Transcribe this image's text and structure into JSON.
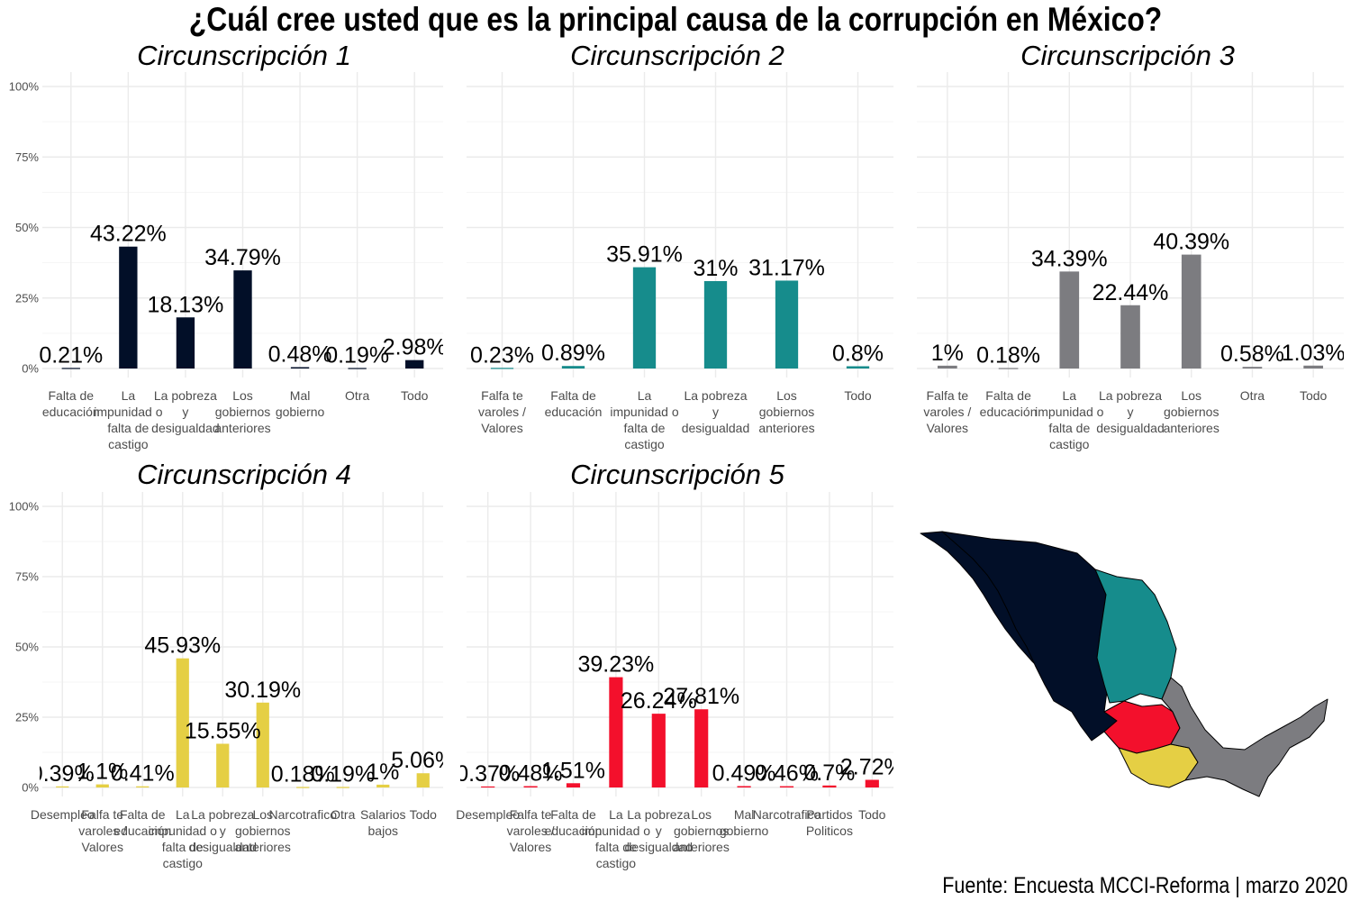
{
  "title": "¿Cuál cree usted que es la principal causa de la corrupción en México?",
  "caption": "Fuente: Encuesta MCCI-Reforma | marzo 2020",
  "map": {
    "regions": [
      "Circunscripción 1",
      "Circunscripción 2",
      "Circunscripción 3",
      "Circunscripción 4",
      "Circunscripción 5"
    ]
  },
  "chart_data": [
    {
      "type": "bar",
      "title": "Circunscripción 1",
      "color": "#020f28",
      "ylim": [
        0,
        1
      ],
      "yticks": [
        "0%",
        "25%",
        "50%",
        "75%",
        "100%"
      ],
      "categories": [
        "Falta de educación",
        "La impunidad o falta de castigo",
        "La pobreza y desigualdad",
        "Los gobiernos anteriores",
        "Mal gobierno",
        "Otra",
        "Todo"
      ],
      "values": [
        0.0021,
        0.4322,
        0.1813,
        0.3479,
        0.0048,
        0.0019,
        0.0298
      ],
      "labels": [
        "0.21%",
        "43.22%",
        "18.13%",
        "34.79%",
        "0.48%",
        "0.19%",
        "2.98%"
      ],
      "grid": true
    },
    {
      "type": "bar",
      "title": "Circunscripción 2",
      "color": "#168c8c",
      "ylim": [
        0,
        1
      ],
      "yticks": [
        "0%",
        "25%",
        "50%",
        "75%",
        "100%"
      ],
      "categories": [
        "Falfa te varoles / Valores",
        "Falta de educación",
        "La impunidad o falta de castigo",
        "La pobreza y desigualdad",
        "Los gobiernos anteriores",
        "Todo"
      ],
      "values": [
        0.0023,
        0.0089,
        0.3591,
        0.31,
        0.3117,
        0.008
      ],
      "labels": [
        "0.23%",
        "0.89%",
        "35.91%",
        "31%",
        "31.17%",
        "0.8%"
      ],
      "grid": true
    },
    {
      "type": "bar",
      "title": "Circunscripción 3",
      "color": "#7c7c80",
      "ylim": [
        0,
        1
      ],
      "yticks": [
        "0%",
        "25%",
        "50%",
        "75%",
        "100%"
      ],
      "categories": [
        "Falfa te varoles / Valores",
        "Falta de educación",
        "La impunidad o falta de castigo",
        "La pobreza y desigualdad",
        "Los gobiernos anteriores",
        "Otra",
        "Todo"
      ],
      "values": [
        0.01,
        0.0018,
        0.3439,
        0.2244,
        0.4039,
        0.0058,
        0.0103
      ],
      "labels": [
        "1%",
        "0.18%",
        "34.39%",
        "22.44%",
        "40.39%",
        "0.58%",
        "1.03%"
      ],
      "grid": true
    },
    {
      "type": "bar",
      "title": "Circunscripción 4",
      "color": "#e5cf44",
      "ylim": [
        0,
        1
      ],
      "yticks": [
        "0%",
        "25%",
        "50%",
        "75%",
        "100%"
      ],
      "categories": [
        "Desempleo",
        "Falfa te varoles / Valores",
        "Falta de educación",
        "La impunidad o falta de castigo",
        "La pobreza y desigualdad",
        "Los gobiernos anteriores",
        "Narcotrafico",
        "Otra",
        "Salarios bajos",
        "Todo"
      ],
      "values": [
        0.0039,
        0.011,
        0.0041,
        0.4593,
        0.1555,
        0.3019,
        0.0018,
        0.0019,
        0.01,
        0.0506
      ],
      "labels": [
        "0.39%",
        "1.1%",
        "0.41%",
        "45.93%",
        "15.55%",
        "30.19%",
        "0.18%",
        "0.19%",
        "1%",
        "5.06%"
      ],
      "grid": true
    },
    {
      "type": "bar",
      "title": "Circunscripción 5",
      "color": "#f3102c",
      "ylim": [
        0,
        1
      ],
      "yticks": [
        "0%",
        "25%",
        "50%",
        "75%",
        "100%"
      ],
      "categories": [
        "Desempleo",
        "Falfa te varoles / Valores",
        "Falta de educación",
        "La impunidad o falta de castigo",
        "La pobreza y desigualdad",
        "Los gobiernos anteriores",
        "Mal gobierno",
        "Narcotrafico",
        "Partidos Politicos",
        "Todo"
      ],
      "values": [
        0.0037,
        0.0048,
        0.0151,
        0.3923,
        0.2624,
        0.2781,
        0.0049,
        0.0046,
        0.007,
        0.0272
      ],
      "labels": [
        "0.37%",
        "0.48%",
        "1.51%",
        "39.23%",
        "26.24%",
        "27.81%",
        "0.49%",
        "0.46%",
        "0.7%",
        "2.72%"
      ],
      "grid": true
    }
  ]
}
